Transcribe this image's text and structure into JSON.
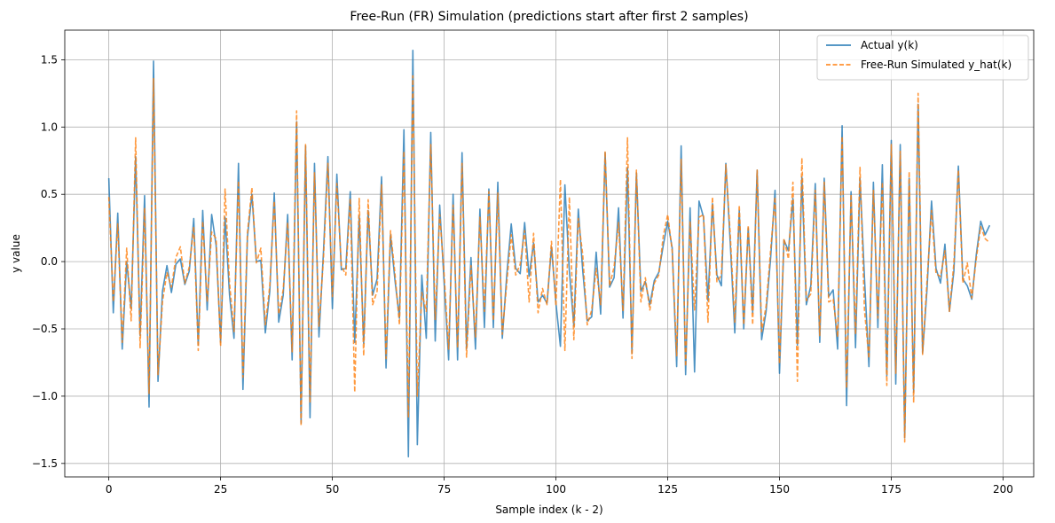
{
  "chart_data": {
    "type": "line",
    "title": "Free-Run (FR) Simulation (predictions start after first 2 samples)",
    "xlabel": "Sample index (k - 2)",
    "ylabel": "y value",
    "xlim": [
      -9.85,
      206.85
    ],
    "ylim": [
      -1.6,
      1.72
    ],
    "x_ticks": [
      0,
      25,
      50,
      75,
      100,
      125,
      150,
      175,
      200
    ],
    "x_tick_labels": [
      "0",
      "25",
      "50",
      "75",
      "100",
      "125",
      "150",
      "175",
      "200"
    ],
    "y_ticks": [
      -1.5,
      -1.0,
      -0.5,
      0.0,
      0.5,
      1.0,
      1.5
    ],
    "y_tick_labels": [
      "−1.5",
      "−1.0",
      "−0.5",
      "0.0",
      "0.5",
      "1.0",
      "1.5"
    ],
    "grid": true,
    "legend_position": "top-right",
    "series": [
      {
        "name": "Actual y(k)",
        "color": "#1f77b4",
        "style": "solid",
        "values": [
          0.62,
          -0.38,
          0.36,
          -0.65,
          0.0,
          -0.35,
          0.78,
          -0.55,
          0.49,
          -1.08,
          1.49,
          -0.89,
          -0.22,
          -0.03,
          -0.23,
          -0.02,
          0.02,
          -0.17,
          -0.07,
          0.32,
          -0.62,
          0.38,
          -0.36,
          0.35,
          0.12,
          -0.6,
          0.33,
          -0.25,
          -0.57,
          0.73,
          -0.95,
          0.18,
          0.5,
          0.0,
          0.01,
          -0.53,
          -0.22,
          0.51,
          -0.45,
          -0.25,
          0.35,
          -0.73,
          1.04,
          -1.2,
          0.86,
          -1.16,
          0.73,
          -0.56,
          0.07,
          0.78,
          -0.35,
          0.65,
          -0.06,
          -0.05,
          0.52,
          -0.6,
          0.34,
          -0.61,
          0.38,
          -0.25,
          -0.13,
          0.63,
          -0.79,
          0.2,
          -0.14,
          -0.42,
          0.98,
          -1.45,
          1.57,
          -1.36,
          -0.1,
          -0.57,
          0.96,
          -0.59,
          0.42,
          -0.16,
          -0.73,
          0.5,
          -0.73,
          0.81,
          -0.65,
          0.03,
          -0.65,
          0.39,
          -0.49,
          0.54,
          -0.49,
          0.59,
          -0.57,
          -0.1,
          0.28,
          -0.05,
          -0.09,
          0.29,
          -0.11,
          0.14,
          -0.3,
          -0.25,
          -0.31,
          0.11,
          -0.31,
          -0.63,
          0.57,
          -0.07,
          -0.48,
          0.39,
          -0.07,
          -0.44,
          -0.41,
          0.07,
          -0.39,
          0.81,
          -0.19,
          -0.12,
          0.4,
          -0.42,
          0.7,
          -0.68,
          0.66,
          -0.22,
          -0.15,
          -0.32,
          -0.14,
          -0.08,
          0.12,
          0.3,
          0.1,
          -0.78,
          0.86,
          -0.84,
          0.4,
          -0.82,
          0.45,
          0.33,
          -0.29,
          0.43,
          -0.1,
          -0.18,
          0.73,
          0.13,
          -0.53,
          0.38,
          -0.5,
          0.25,
          -0.38,
          0.68,
          -0.58,
          -0.37,
          0.02,
          0.53,
          -0.83,
          0.16,
          0.08,
          0.47,
          -0.62,
          0.63,
          -0.32,
          -0.18,
          0.58,
          -0.6,
          0.62,
          -0.26,
          -0.21,
          -0.65,
          1.01,
          -1.07,
          0.52,
          -0.64,
          0.62,
          -0.12,
          -0.78,
          0.59,
          -0.49,
          0.72,
          -0.85,
          0.9,
          -0.91,
          0.87,
          -1.31,
          0.62,
          -0.97,
          1.17,
          -0.68,
          -0.2,
          0.45,
          -0.05,
          -0.16,
          0.13,
          -0.37,
          -0.07,
          0.71,
          -0.13,
          -0.18,
          -0.28,
          0.05,
          0.3,
          0.2,
          0.27
        ]
      },
      {
        "name": "Free-Run Simulated y_hat(k)",
        "color": "#ff7f0e",
        "style": "dashed",
        "values": [
          0.48,
          -0.3,
          0.28,
          -0.6,
          0.1,
          -0.44,
          0.92,
          -0.64,
          0.4,
          -0.98,
          1.36,
          -0.84,
          -0.3,
          -0.08,
          -0.19,
          0.03,
          0.11,
          -0.16,
          -0.04,
          0.26,
          -0.66,
          0.3,
          -0.3,
          0.22,
          0.17,
          -0.63,
          0.54,
          -0.16,
          -0.52,
          0.6,
          -0.86,
          0.21,
          0.55,
          -0.01,
          0.1,
          -0.47,
          -0.18,
          0.45,
          -0.39,
          -0.21,
          0.29,
          -0.67,
          1.12,
          -1.22,
          0.87,
          -1.05,
          0.66,
          -0.48,
          0.02,
          0.73,
          -0.26,
          0.58,
          -0.03,
          -0.1,
          0.47,
          -0.97,
          0.47,
          -0.7,
          0.46,
          -0.32,
          -0.22,
          0.57,
          -0.72,
          0.23,
          -0.09,
          -0.47,
          0.82,
          -1.16,
          1.38,
          -1.0,
          -0.23,
          -0.37,
          0.87,
          -0.43,
          0.35,
          -0.1,
          -0.65,
          0.42,
          -0.64,
          0.73,
          -0.71,
          -0.03,
          -0.56,
          0.33,
          -0.37,
          0.52,
          -0.44,
          0.51,
          -0.54,
          -0.16,
          0.2,
          -0.1,
          -0.02,
          0.23,
          -0.3,
          0.21,
          -0.38,
          -0.2,
          -0.32,
          0.15,
          -0.33,
          0.61,
          -0.66,
          0.48,
          -0.58,
          0.32,
          0.05,
          -0.47,
          -0.36,
          -0.05,
          -0.32,
          0.82,
          -0.18,
          -0.04,
          0.29,
          -0.37,
          0.92,
          -0.72,
          0.68,
          -0.3,
          -0.12,
          -0.36,
          -0.16,
          -0.1,
          0.19,
          0.35,
          0.08,
          -0.7,
          0.76,
          -0.78,
          0.3,
          -0.36,
          0.33,
          0.35,
          -0.45,
          0.48,
          -0.15,
          -0.1,
          0.72,
          0.19,
          -0.45,
          0.42,
          -0.47,
          0.27,
          -0.47,
          0.68,
          -0.52,
          -0.33,
          0.08,
          0.48,
          -0.76,
          0.17,
          0.02,
          0.59,
          -0.89,
          0.77,
          -0.29,
          -0.24,
          0.53,
          -0.55,
          0.59,
          -0.3,
          -0.28,
          -0.56,
          0.93,
          -0.94,
          0.5,
          -0.54,
          0.7,
          -0.36,
          -0.72,
          0.53,
          -0.42,
          0.59,
          -0.92,
          0.87,
          -0.83,
          0.82,
          -1.34,
          0.67,
          -1.05,
          1.25,
          -0.69,
          -0.14,
          0.38,
          -0.09,
          -0.11,
          0.08,
          -0.37,
          -0.01,
          0.68,
          -0.16,
          -0.01,
          -0.27,
          0.02,
          0.26,
          0.17,
          0.14
        ]
      }
    ]
  }
}
